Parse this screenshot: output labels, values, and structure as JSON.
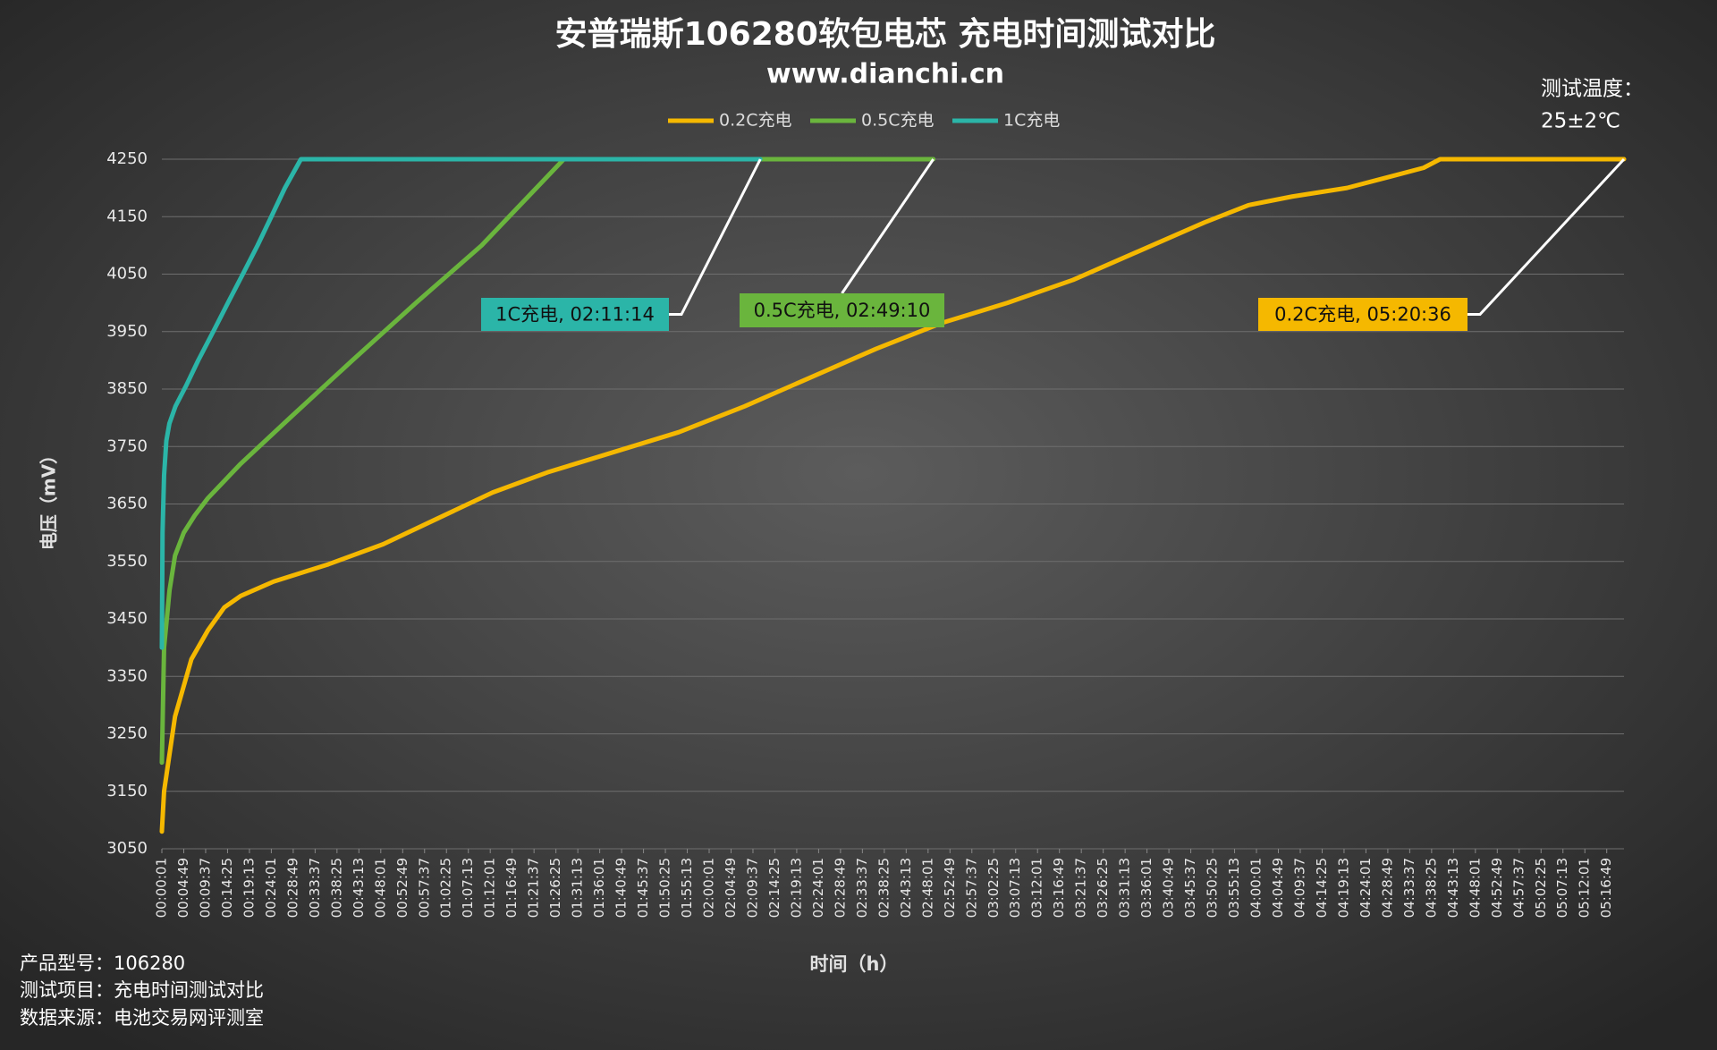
{
  "chart_data": {
    "type": "line",
    "title": "安普瑞斯106280软包电芯 充电时间测试对比",
    "subtitle": "www.dianchi.cn",
    "temperature_label": "测试温度：",
    "temperature_value": "25±2℃",
    "x_label": "时间（h）",
    "y_label": "电压（mV）",
    "footer": [
      "产品型号：106280",
      "测试项目：充电时间测试对比",
      "数据来源：电池交易网评测室"
    ],
    "xlim": [
      "00:00:01",
      "05:20:36"
    ],
    "xticks": [
      "00:00:01",
      "00:04:49",
      "00:09:37",
      "00:14:25",
      "00:19:13",
      "00:24:01",
      "00:28:49",
      "00:33:37",
      "00:38:25",
      "00:43:13",
      "00:48:01",
      "00:52:49",
      "00:57:37",
      "01:02:25",
      "01:07:13",
      "01:12:01",
      "01:16:49",
      "01:21:37",
      "01:26:25",
      "01:31:13",
      "01:36:01",
      "01:40:49",
      "01:45:37",
      "01:50:25",
      "01:55:13",
      "02:00:01",
      "02:04:49",
      "02:09:37",
      "02:14:25",
      "02:19:13",
      "02:24:01",
      "02:28:49",
      "02:33:37",
      "02:38:25",
      "02:43:13",
      "02:48:01",
      "02:52:49",
      "02:57:37",
      "03:02:25",
      "03:07:13",
      "03:12:01",
      "03:16:49",
      "03:21:37",
      "03:26:25",
      "03:31:13",
      "03:36:01",
      "03:40:49",
      "03:45:37",
      "03:50:25",
      "03:55:13",
      "04:00:01",
      "04:04:49",
      "04:09:37",
      "04:14:25",
      "04:19:13",
      "04:24:01",
      "04:28:49",
      "04:33:37",
      "04:38:25",
      "04:43:13",
      "04:48:01",
      "04:52:49",
      "04:57:37",
      "05:02:25",
      "05:07:13",
      "05:12:01",
      "05:16:49"
    ],
    "ylim": [
      3050,
      4250
    ],
    "yticks": [
      3050,
      3150,
      3250,
      3350,
      3450,
      3550,
      3650,
      3750,
      3850,
      3950,
      4050,
      4150,
      4250
    ],
    "grid": true,
    "legend": "top",
    "series": [
      {
        "name": "0.2C充电",
        "color": "#f5b800",
        "end_label": "0.2C充电, 05:20:36",
        "x": [
          "00:00:01",
          "00:00:30",
          "00:02:54",
          "00:06:30",
          "00:10:06",
          "00:13:42",
          "00:17:18",
          "00:24:31",
          "00:36:31",
          "00:48:32",
          "01:00:32",
          "01:12:33",
          "01:24:33",
          "01:38:58",
          "01:53:22",
          "02:07:47",
          "02:22:11",
          "02:36:36",
          "02:51:00",
          "03:05:25",
          "03:19:49",
          "03:34:14",
          "03:48:38",
          "03:58:15",
          "04:07:51",
          "04:19:52",
          "04:29:28",
          "04:36:40",
          "04:40:17",
          "05:20:36"
        ],
        "values": [
          3080,
          3150,
          3280,
          3380,
          3430,
          3470,
          3490,
          3515,
          3545,
          3580,
          3625,
          3670,
          3705,
          3740,
          3775,
          3820,
          3870,
          3920,
          3965,
          4000,
          4040,
          4090,
          4140,
          4170,
          4185,
          4200,
          4220,
          4235,
          4250,
          4250
        ]
      },
      {
        "name": "0.5C充电",
        "color": "#6ab53d",
        "end_label": "0.5C充电, 02:49:10",
        "x": [
          "00:00:01",
          "00:00:30",
          "00:01:42",
          "00:02:54",
          "00:04:49",
          "00:07:13",
          "00:10:06",
          "00:17:18",
          "00:28:07",
          "00:41:48",
          "00:55:44",
          "01:10:08",
          "01:16:08",
          "01:22:09",
          "01:28:09",
          "02:49:10"
        ],
        "values": [
          3200,
          3400,
          3500,
          3560,
          3600,
          3630,
          3660,
          3720,
          3800,
          3900,
          4000,
          4100,
          4150,
          4200,
          4250,
          4250
        ]
      },
      {
        "name": "1C充电",
        "color": "#2bb5a8",
        "end_label": "1C充电, 02:11:14",
        "x": [
          "00:00:01",
          "00:00:10",
          "00:00:30",
          "00:01:00",
          "00:01:40",
          "00:03:00",
          "00:05:17",
          "00:08:00",
          "00:11:17",
          "00:14:30",
          "00:17:46",
          "00:21:00",
          "00:24:01",
          "00:27:00",
          "00:30:30",
          "02:11:14"
        ],
        "values": [
          3400,
          3600,
          3700,
          3760,
          3790,
          3820,
          3855,
          3900,
          3950,
          4000,
          4050,
          4100,
          4150,
          4200,
          4250,
          4250
        ]
      }
    ]
  }
}
